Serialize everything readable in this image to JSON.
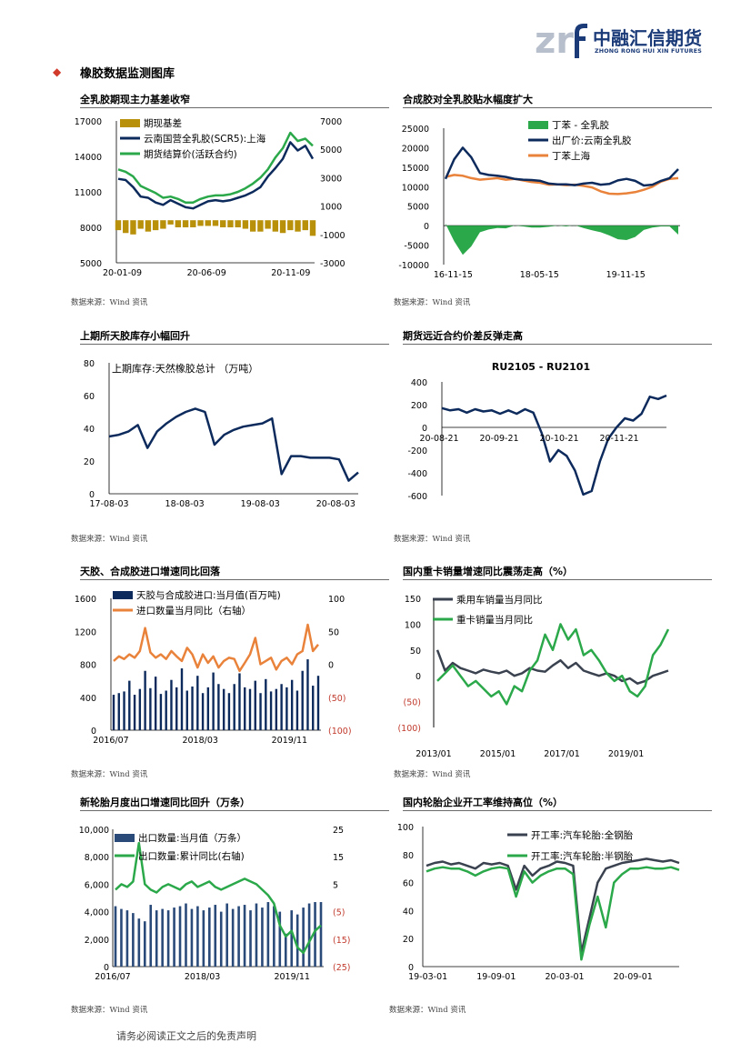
{
  "header": {
    "logo_mark": "zrf",
    "logo_cn": "中融汇信期货",
    "logo_en": "ZHONG RONG HUI XIN FUTURES",
    "brand_color": "#1a3a78"
  },
  "section": {
    "bullet_icon": "diamond-icon",
    "title": "橡胶数据监测图库"
  },
  "panels": [
    {
      "title": "全乳胶期现主力基差收窄",
      "source": "数据来源：Wind 资讯",
      "chart_data": {
        "type": "line",
        "legend": [
          "期现基差",
          "云南国营全乳胶(SCR5):上海",
          "期货结算价(活跃合约)"
        ],
        "x_ticks": [
          "20-01-09",
          "20-06-09",
          "20-11-09"
        ],
        "y_left_ticks": [
          "17000",
          "14000",
          "11000",
          "8000",
          "5000"
        ],
        "y_right_ticks": [
          "7000",
          "5000",
          "3000",
          "1000",
          "-1000",
          "-3000"
        ],
        "ylim_left": [
          5000,
          17000
        ],
        "ylim_right": [
          -3000,
          7000
        ],
        "colors": [
          "#b8900a",
          "#0d2a5c",
          "#2ba84a"
        ],
        "series": [
          {
            "name": "云南国营全乳胶(SCR5):上海",
            "values": [
              12100,
              12000,
              11400,
              10600,
              10500,
              10100,
              9900,
              10300,
              10000,
              9700,
              9600,
              9900,
              10200,
              10300,
              10200,
              10300,
              10500,
              10700,
              11000,
              11400,
              12300,
              13000,
              13800,
              15200,
              14500,
              14900,
              13800
            ]
          },
          {
            "name": "期货结算价(活跃合约)",
            "values": [
              12900,
              12700,
              12300,
              11500,
              11200,
              10900,
              10500,
              10600,
              10400,
              10100,
              10100,
              10400,
              10600,
              10700,
              10700,
              10800,
              11000,
              11300,
              11700,
              12200,
              12900,
              13900,
              14700,
              16000,
              15300,
              15500,
              14900
            ]
          },
          {
            "name": "期现基差",
            "values": [
              -700,
              -900,
              -1000,
              -600,
              -800,
              -700,
              -600,
              -300,
              -500,
              -500,
              -500,
              -400,
              -400,
              -400,
              -500,
              -500,
              -500,
              -600,
              -800,
              -800,
              -600,
              -800,
              -900,
              -700,
              -800,
              -700,
              -1100
            ]
          }
        ]
      }
    },
    {
      "title": "合成胶对全乳胶贴水幅度扩大",
      "source": "数据来源：Wind 资讯",
      "chart_data": {
        "type": "line",
        "legend": [
          "丁苯 - 全乳胶",
          "出厂价:云南全乳胶",
          "丁苯上海"
        ],
        "x_ticks": [
          "16-11-15",
          "18-05-15",
          "19-11-15"
        ],
        "y_ticks": [
          "25000",
          "20000",
          "15000",
          "10000",
          "5000",
          "0",
          "-5000",
          "-10000"
        ],
        "ylim": [
          -10000,
          25000
        ],
        "colors": [
          "#2ba84a",
          "#0d2a5c",
          "#e9823a"
        ],
        "series": [
          {
            "name": "出厂价:云南全乳胶",
            "values": [
              12000,
              17000,
              20000,
              17500,
              13500,
              13000,
              12800,
              12500,
              12000,
              11800,
              11700,
              11500,
              10800,
              10600,
              10600,
              10400,
              10800,
              11000,
              10500,
              10700,
              11600,
              12000,
              11500,
              10300,
              10500,
              11500,
              12200,
              14500
            ]
          },
          {
            "name": "丁苯上海",
            "values": [
              12500,
              13000,
              12800,
              12200,
              11800,
              12000,
              12200,
              11800,
              12000,
              11600,
              11200,
              11000,
              10500,
              10600,
              10400,
              10500,
              10200,
              9800,
              8800,
              8200,
              8100,
              8300,
              8600,
              9200,
              10000,
              11300,
              12000,
              12200
            ]
          },
          {
            "name": "丁苯 - 全乳胶",
            "values": [
              500,
              -4000,
              -7500,
              -5300,
              -1700,
              -1000,
              -600,
              -700,
              0,
              -200,
              -500,
              -500,
              -300,
              0,
              -200,
              100,
              -600,
              -1200,
              -1700,
              -2500,
              -3500,
              -3700,
              -2900,
              -1100,
              -500,
              -200,
              -200,
              -2300
            ]
          }
        ]
      }
    },
    {
      "title": "上期所天胶库存小幅回升",
      "source": "数据来源：Wind 资讯",
      "chart_data": {
        "type": "line",
        "legend": [
          "上期库存:天然橡胶总计  （万吨）"
        ],
        "x_ticks": [
          "17-08-03",
          "18-08-03",
          "19-08-03",
          "20-08-03"
        ],
        "y_ticks": [
          "80",
          "60",
          "40",
          "20",
          "0"
        ],
        "ylim": [
          0,
          80
        ],
        "colors": [
          "#0d2a5c"
        ],
        "series": [
          {
            "name": "上期库存:天然橡胶总计",
            "values": [
              35,
              36,
              38,
              42,
              28,
              38,
              43,
              47,
              50,
              52,
              50,
              30,
              36,
              39,
              41,
              42,
              43,
              46,
              12,
              23,
              23,
              22,
              22,
              22,
              21,
              8,
              13
            ]
          }
        ]
      }
    },
    {
      "title": "期货远近合约价差反弹走高",
      "source": "数据来源：Wind 资讯",
      "chart_data": {
        "type": "line",
        "title": "RU2105 - RU2101",
        "x_ticks": [
          "20-08-21",
          "20-09-21",
          "20-10-21",
          "20-11-21"
        ],
        "y_ticks": [
          "400",
          "200",
          "0",
          "-200",
          "-400",
          "-600"
        ],
        "ylim": [
          -600,
          400
        ],
        "colors": [
          "#0d2a5c"
        ],
        "series": [
          {
            "name": "RU2105 - RU2101",
            "values": [
              170,
              150,
              160,
              130,
              160,
              140,
              150,
              120,
              150,
              120,
              160,
              130,
              -50,
              -300,
              -200,
              -250,
              -380,
              -590,
              -560,
              -300,
              -100,
              0,
              80,
              60,
              120,
              270,
              250,
              280
            ]
          }
        ]
      }
    },
    {
      "title": "天胶、合成胶进口增速同比回落",
      "source": "数据来源：Wind 资讯",
      "chart_data": {
        "type": "bar",
        "legend": [
          "天胶与合成胶进口:当月值(百万吨)",
          "进口数量当月同比（右轴）"
        ],
        "x_ticks": [
          "2016/07",
          "2018/03",
          "2019/11"
        ],
        "y_left_ticks": [
          "1600",
          "1200",
          "800",
          "400",
          "0"
        ],
        "y_right_ticks": [
          "100",
          "50",
          "0",
          "(50)",
          "(100)"
        ],
        "ylim_left": [
          0,
          1600
        ],
        "ylim_right": [
          -100,
          100
        ],
        "colors": [
          "#0d2a5c",
          "#e9823a",
          "#c0392b"
        ],
        "series": [
          {
            "name": "天胶与合成胶进口:当月值",
            "values": [
              430,
              450,
              470,
              600,
              430,
              500,
              720,
              510,
              650,
              440,
              480,
              610,
              520,
              750,
              480,
              530,
              660,
              450,
              520,
              700,
              560,
              500,
              450,
              560,
              690,
              520,
              500,
              600,
              450,
              620,
              470,
              500,
              560,
              520,
              610,
              480,
              720,
              860,
              540,
              660
            ]
          },
          {
            "name": "进口数量当月同比",
            "values": [
              5,
              12,
              8,
              15,
              10,
              20,
              55,
              18,
              10,
              15,
              8,
              20,
              12,
              5,
              25,
              15,
              -5,
              15,
              2,
              12,
              -5,
              5,
              10,
              8,
              -10,
              2,
              15,
              40,
              0,
              5,
              10,
              -8,
              5,
              10,
              0,
              15,
              20,
              60,
              20,
              30
            ]
          }
        ]
      }
    },
    {
      "title": "国内重卡销量增速同比震荡走高（%）",
      "source": "数据来源：Wind 资讯",
      "chart_data": {
        "type": "line",
        "legend": [
          "乘用车销量当月同比",
          "重卡销量当月同比"
        ],
        "x_ticks": [
          "2013/01",
          "2015/01",
          "2017/01",
          "2019/01"
        ],
        "y_ticks": [
          "150",
          "100",
          "50",
          "0",
          "(50)",
          "(100)"
        ],
        "ylim": [
          -100,
          150
        ],
        "colors": [
          "#3a4250",
          "#2ba84a",
          "#c0392b"
        ],
        "series": [
          {
            "name": "乘用车销量当月同比",
            "values": [
              50,
              10,
              25,
              15,
              10,
              5,
              12,
              8,
              5,
              10,
              0,
              5,
              15,
              10,
              8,
              20,
              30,
              15,
              25,
              10,
              5,
              0,
              5,
              0,
              -10,
              -5,
              -15,
              -10,
              0,
              5,
              10
            ]
          },
          {
            "name": "重卡销量当月同比",
            "values": [
              -10,
              5,
              20,
              0,
              -20,
              -10,
              -25,
              -40,
              -30,
              -55,
              -20,
              -30,
              10,
              30,
              80,
              50,
              100,
              70,
              90,
              40,
              50,
              30,
              5,
              -10,
              0,
              -30,
              -40,
              -20,
              40,
              60,
              90
            ]
          }
        ]
      }
    },
    {
      "title": "新轮胎月度出口增速同比回升（万条）",
      "source": "数据来源：Wind 资讯",
      "chart_data": {
        "type": "bar",
        "legend": [
          "出口数量:当月值（万条）",
          "出口数量:累计同比(右轴)"
        ],
        "x_ticks": [
          "2016/07",
          "2018/03",
          "2019/11"
        ],
        "y_left_ticks": [
          "10,000",
          "8,000",
          "6,000",
          "4,000",
          "2,000",
          "0"
        ],
        "y_right_ticks": [
          "25",
          "15",
          "5",
          "(5)",
          "(15)",
          "(25)"
        ],
        "ylim_left": [
          0,
          10000
        ],
        "ylim_right": [
          -25,
          25
        ],
        "colors": [
          "#2a4a7a",
          "#2ba84a",
          "#c0392b"
        ],
        "series": [
          {
            "name": "出口数量:当月值",
            "values": [
              4400,
              4200,
              4100,
              3900,
              3500,
              3300,
              4500,
              4100,
              4200,
              4100,
              4300,
              4400,
              4600,
              4200,
              4400,
              4100,
              4300,
              4500,
              4000,
              4600,
              4200,
              4400,
              4500,
              4100,
              4600,
              4300,
              4700,
              4400,
              4000,
              2400,
              4100,
              3800,
              4300,
              4600,
              4700,
              4700
            ]
          },
          {
            "name": "出口数量:累计同比",
            "values": [
              3,
              5,
              4,
              6,
              20,
              5,
              3,
              2,
              4,
              5,
              4,
              3,
              5,
              6,
              4,
              5,
              6,
              4,
              3,
              4,
              5,
              6,
              7,
              6,
              5,
              3,
              1,
              -2,
              -10,
              -14,
              -12,
              -18,
              -20,
              -16,
              -12,
              -10
            ]
          }
        ]
      }
    },
    {
      "title": "国内轮胎企业开工率维持高位（%）",
      "source": "数据来源：Wind 资讯",
      "chart_data": {
        "type": "line",
        "legend": [
          "开工率:汽车轮胎:全钢胎",
          "开工率:汽车轮胎:半钢胎"
        ],
        "x_ticks": [
          "19-03-01",
          "19-09-01",
          "20-03-01",
          "20-09-01"
        ],
        "y_ticks": [
          "100",
          "80",
          "60",
          "40",
          "20",
          "0"
        ],
        "ylim": [
          0,
          100
        ],
        "colors": [
          "#3a4250",
          "#2ba84a"
        ],
        "series": [
          {
            "name": "开工率:汽车轮胎:全钢胎",
            "values": [
              72,
              74,
              75,
              73,
              74,
              72,
              70,
              74,
              73,
              74,
              72,
              55,
              72,
              65,
              70,
              72,
              75,
              74,
              72,
              10,
              35,
              60,
              70,
              72,
              74,
              75,
              76,
              77,
              76,
              75,
              76,
              74
            ]
          },
          {
            "name": "开工率:汽车轮胎:半钢胎",
            "values": [
              68,
              70,
              71,
              70,
              70,
              68,
              65,
              68,
              70,
              71,
              70,
              50,
              68,
              60,
              65,
              68,
              70,
              70,
              66,
              5,
              30,
              50,
              28,
              60,
              66,
              70,
              70,
              71,
              70,
              70,
              71,
              69
            ]
          }
        ]
      }
    }
  ],
  "footer": {
    "disclaimer": "请务必阅读正文之后的免责声明"
  }
}
